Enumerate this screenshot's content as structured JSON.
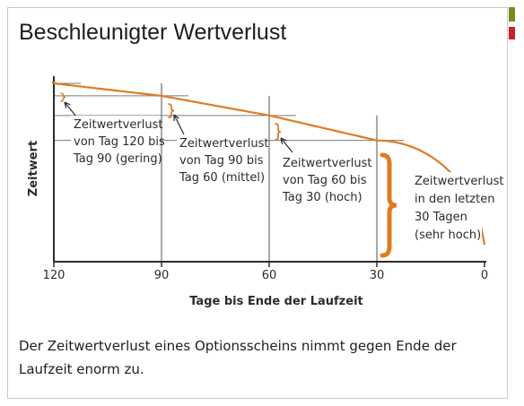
{
  "colors": {
    "curve": "#e07b24",
    "accent_top": "#7a8a1a",
    "accent_bottom": "#c8202e",
    "axis": "#2b2b2b",
    "grid": "#7a7a7a"
  },
  "title": "Beschleunigter Wertverlust",
  "caption": "Der Zeitwertverlust eines Optionsscheins nimmt gegen Ende der Laufzeit enorm zu.",
  "chart_data": {
    "type": "line",
    "title": "Beschleunigter Wertverlust",
    "xlabel": "Tage bis Ende der Laufzeit",
    "ylabel": "Zeitwert",
    "x_reversed": true,
    "xlim": [
      120,
      0
    ],
    "ylim": [
      0,
      100
    ],
    "x_ticks": [
      "120",
      "90",
      "60",
      "30",
      "0"
    ],
    "x": [
      120,
      90,
      60,
      30,
      0
    ],
    "values": [
      100,
      93,
      82,
      68,
      0
    ],
    "grid": true,
    "annotations": [
      {
        "lines": [
          "Zeitwertverlust",
          "von Tag 120 bis",
          "Tag 90 (gering)"
        ]
      },
      {
        "lines": [
          "Zeitwertverlust",
          "von Tag 90 bis",
          "Tag 60 (mittel)"
        ]
      },
      {
        "lines": [
          "Zeitwertverlust",
          "von Tag 60 bis",
          "Tag 30 (hoch)"
        ]
      },
      {
        "lines": [
          "Zeitwertverlust",
          "in den letzten",
          "30 Tagen",
          "(sehr hoch)"
        ]
      }
    ]
  }
}
